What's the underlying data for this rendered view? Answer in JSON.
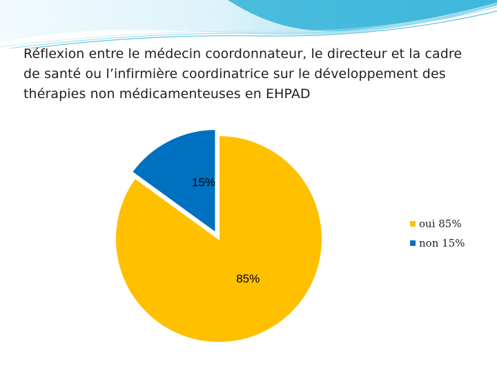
{
  "title": "Réflexion entre le médecin coordonnateur, le directeur et la cadre de santé ou l’infirmière coordinatrice sur le développement des thérapies non médicamenteuses en EHPAD",
  "chart_data": {
    "type": "pie",
    "title": "Réflexion entre le médecin coordonnateur, le directeur et la cadre de santé ou l’infirmière coordinatrice sur le développement des thérapies non médicamenteuses en EHPAD",
    "slices": [
      {
        "name": "oui",
        "value": 85,
        "label": "85%",
        "legend": "oui 85%",
        "color": "#FFC000",
        "exploded": false
      },
      {
        "name": "non",
        "value": 15,
        "label": "15%",
        "legend": "non 15%",
        "color": "#0070C0",
        "exploded": true
      }
    ],
    "legend_position": "right"
  },
  "theme": {
    "wave_dark": "#1aa3c9",
    "wave_light": "#9fdcef"
  }
}
